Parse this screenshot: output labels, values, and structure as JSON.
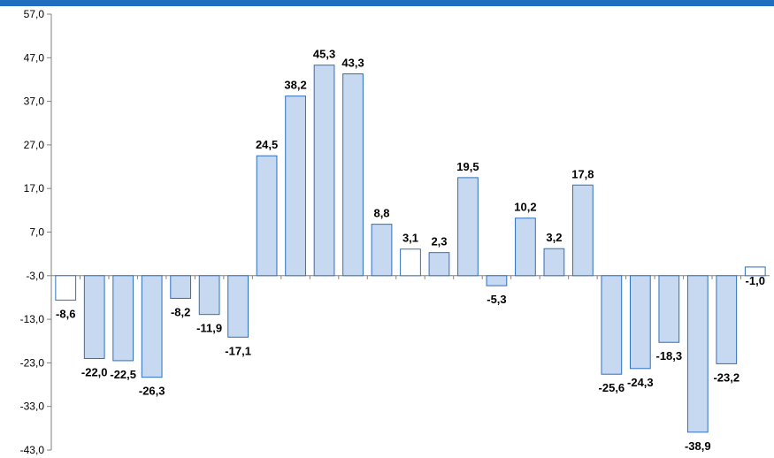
{
  "chart_data": {
    "type": "bar",
    "title": "",
    "xlabel": "",
    "ylabel": "",
    "ylim": [
      -43.0,
      57.0
    ],
    "yticks": [
      "57,0",
      "47,0",
      "37,0",
      "27,0",
      "17,0",
      "7,0",
      "-3,0",
      "-13,0",
      "-23,0",
      "-33,0",
      "-43,0"
    ],
    "ytick_values": [
      57,
      47,
      37,
      27,
      17,
      7,
      -3,
      -13,
      -23,
      -33,
      -43
    ],
    "values": [
      -8.6,
      -22.0,
      -22.5,
      -26.3,
      -8.2,
      -11.9,
      -17.1,
      24.5,
      38.2,
      45.3,
      43.3,
      8.8,
      3.1,
      2.3,
      19.5,
      -5.3,
      10.2,
      3.2,
      17.8,
      -25.6,
      -24.3,
      -18.3,
      -38.9,
      -23.2,
      -1.0
    ],
    "labels": [
      "-8,6",
      "-22,0",
      "-22,5",
      "-26,3",
      "-8,2",
      "-11,9",
      "-17,1",
      "24,5",
      "38,2",
      "45,3",
      "43,3",
      "8,8",
      "3,1",
      "2,3",
      "19,5",
      "-5,3",
      "10,2",
      "3,2",
      "17,8",
      "-25,6",
      "-24,3",
      "-18,3",
      "-38,9",
      "-23,2",
      "-1,0"
    ],
    "baseline": -3.0,
    "grid": false,
    "legend": "none",
    "colors": {
      "bar_fill": "#c6d9f1",
      "bar_fill_highlight": "#ffffff",
      "bar_stroke": "#2e6fbd",
      "axis": "#808080",
      "top_bar": "#1f6ec0"
    },
    "highlight_indices": [
      0,
      12,
      24
    ]
  }
}
